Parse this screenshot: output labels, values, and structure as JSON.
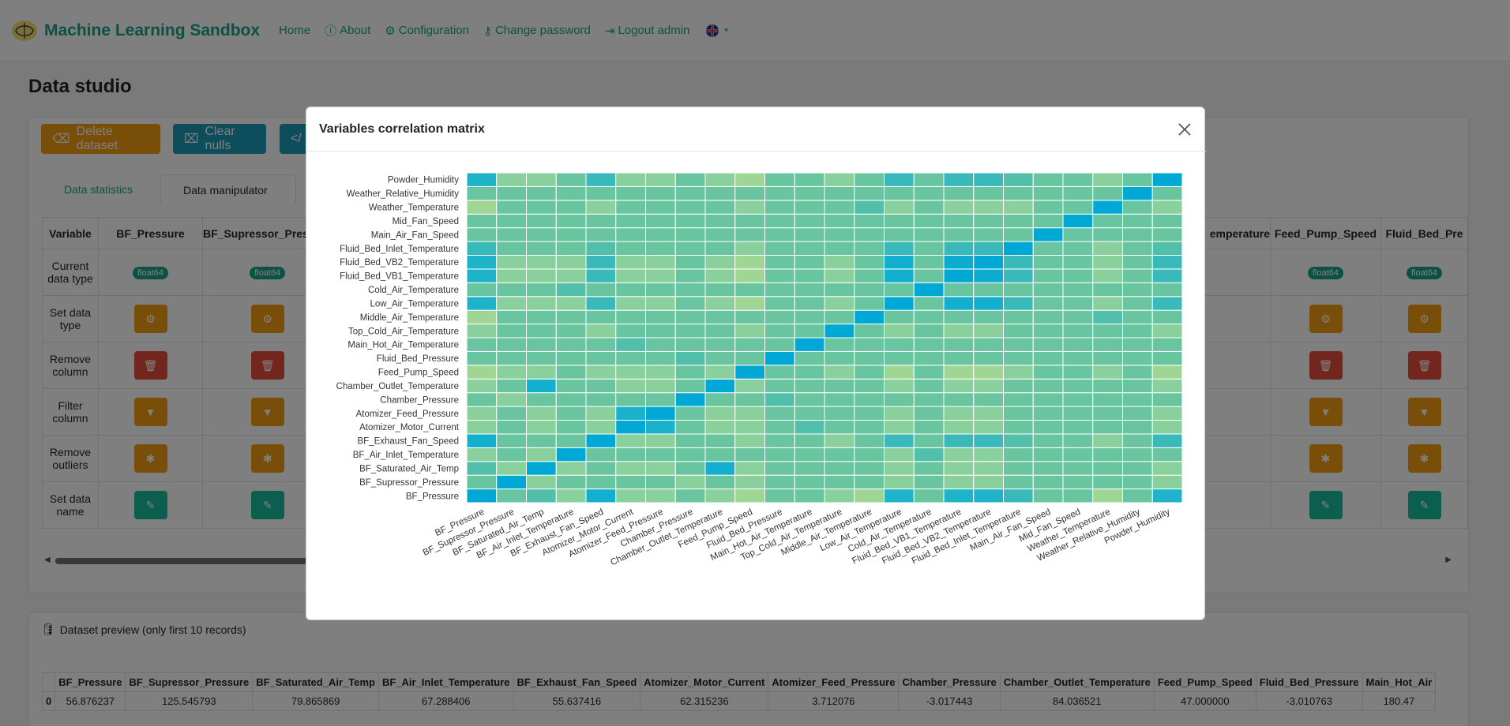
{
  "navbar": {
    "brand": "Machine Learning Sandbox",
    "links": [
      "Home",
      "About",
      "Configuration",
      "Change password",
      "Logout admin"
    ]
  },
  "page": {
    "title": "Data studio",
    "buttons": {
      "delete": "Delete dataset",
      "clear": "Clear nulls"
    },
    "tabs": [
      "Data statistics",
      "Data manipulator"
    ],
    "table": {
      "headers": [
        "Variable",
        "BF_Pressure",
        "BF_Supressor_Pressure"
      ],
      "right_headers": [
        "Feed_Pump_Speed",
        "Fluid_Bed_Pre"
      ],
      "partial_header": "emperature",
      "row_labels": [
        "Current data type",
        "Set data type",
        "Remove column",
        "Filter column",
        "Remove outliers",
        "Set data name"
      ],
      "dtype": "float64"
    }
  },
  "preview": {
    "title": "Dataset preview (only first 10 records)",
    "headers": [
      "",
      "BF_Pressure",
      "BF_Supressor_Pressure",
      "BF_Saturated_Air_Temp",
      "BF_Air_Inlet_Temperature",
      "BF_Exhaust_Fan_Speed",
      "Atomizer_Motor_Current",
      "Atomizer_Feed_Pressure",
      "Chamber_Pressure",
      "Chamber_Outlet_Temperature",
      "Feed_Pump_Speed",
      "Fluid_Bed_Pressure",
      "Main_Hot_Air"
    ],
    "row0": [
      "0",
      "56.876237",
      "125.545793",
      "79.865869",
      "67.288406",
      "55.637416",
      "62.315236",
      "3.712076",
      "-3.017443",
      "84.036521",
      "47.000000",
      "-3.010763",
      "180.47"
    ]
  },
  "modal": {
    "title": "Variables correlation matrix"
  },
  "chart_data": {
    "type": "heatmap",
    "title": "",
    "variables": [
      "BF_Pressure",
      "BF_Supressor_Pressure",
      "BF_Saturated_Air_Temp",
      "BF_Air_Inlet_Temperature",
      "BF_Exhaust_Fan_Speed",
      "Atomizer_Motor_Current",
      "Atomizer_Feed_Pressure",
      "Chamber_Pressure",
      "Chamber_Outlet_Temperature",
      "Feed_Pump_Speed",
      "Fluid_Bed_Pressure",
      "Main_Hot_Air_Temperature",
      "Top_Cold_Air_Temperature",
      "Middle_Air_Temperature",
      "Low_Air_Temperature",
      "Cold_Air_Temperature",
      "Fluid_Bed_VB1_Temperature",
      "Fluid_Bed_VB2_Temperature",
      "Fluid_Bed_Inlet_Temperature",
      "Main_Air_Fan_Speed",
      "Mid_Fan_Speed",
      "Weather_Temperature",
      "Weather_Relative_Humidity",
      "Powder_Humidity"
    ],
    "matrix": [
      [
        1.0,
        0.45,
        0.55,
        0.3,
        0.85,
        0.3,
        0.3,
        0.45,
        0.3,
        0.2,
        0.45,
        0.45,
        0.3,
        0.2,
        0.75,
        0.45,
        0.75,
        0.75,
        0.65,
        0.45,
        0.45,
        0.2,
        0.45,
        0.75
      ],
      [
        0.45,
        1.0,
        0.3,
        0.45,
        0.45,
        0.45,
        0.45,
        0.3,
        0.45,
        0.3,
        0.45,
        0.45,
        0.45,
        0.45,
        0.3,
        0.45,
        0.3,
        0.3,
        0.45,
        0.45,
        0.45,
        0.45,
        0.45,
        0.3
      ],
      [
        0.55,
        0.3,
        1.0,
        0.3,
        0.45,
        0.3,
        0.3,
        0.45,
        0.85,
        0.3,
        0.45,
        0.45,
        0.45,
        0.45,
        0.3,
        0.45,
        0.3,
        0.3,
        0.45,
        0.45,
        0.45,
        0.45,
        0.45,
        0.3
      ],
      [
        0.3,
        0.45,
        0.3,
        1.0,
        0.45,
        0.45,
        0.45,
        0.45,
        0.45,
        0.45,
        0.45,
        0.45,
        0.45,
        0.45,
        0.3,
        0.55,
        0.3,
        0.3,
        0.45,
        0.45,
        0.45,
        0.45,
        0.45,
        0.45
      ],
      [
        0.85,
        0.45,
        0.45,
        0.45,
        1.0,
        0.3,
        0.3,
        0.45,
        0.45,
        0.3,
        0.45,
        0.45,
        0.3,
        0.45,
        0.65,
        0.45,
        0.65,
        0.65,
        0.55,
        0.45,
        0.45,
        0.3,
        0.45,
        0.65
      ],
      [
        0.3,
        0.45,
        0.3,
        0.45,
        0.3,
        1.0,
        0.8,
        0.45,
        0.3,
        0.3,
        0.45,
        0.55,
        0.45,
        0.45,
        0.3,
        0.45,
        0.3,
        0.3,
        0.45,
        0.45,
        0.45,
        0.45,
        0.45,
        0.3
      ],
      [
        0.3,
        0.45,
        0.3,
        0.45,
        0.3,
        0.8,
        1.0,
        0.45,
        0.3,
        0.3,
        0.45,
        0.45,
        0.45,
        0.45,
        0.3,
        0.45,
        0.3,
        0.3,
        0.45,
        0.45,
        0.45,
        0.45,
        0.45,
        0.3
      ],
      [
        0.45,
        0.3,
        0.45,
        0.45,
        0.45,
        0.45,
        0.45,
        1.0,
        0.45,
        0.45,
        0.55,
        0.45,
        0.45,
        0.45,
        0.45,
        0.45,
        0.45,
        0.45,
        0.45,
        0.45,
        0.45,
        0.45,
        0.45,
        0.45
      ],
      [
        0.3,
        0.45,
        0.85,
        0.45,
        0.45,
        0.3,
        0.3,
        0.45,
        1.0,
        0.3,
        0.45,
        0.45,
        0.45,
        0.45,
        0.3,
        0.45,
        0.3,
        0.3,
        0.45,
        0.45,
        0.45,
        0.45,
        0.45,
        0.3
      ],
      [
        0.2,
        0.3,
        0.3,
        0.45,
        0.3,
        0.3,
        0.3,
        0.45,
        0.3,
        1.0,
        0.45,
        0.45,
        0.3,
        0.45,
        0.2,
        0.45,
        0.2,
        0.2,
        0.3,
        0.45,
        0.45,
        0.3,
        0.45,
        0.2
      ],
      [
        0.45,
        0.45,
        0.45,
        0.45,
        0.45,
        0.45,
        0.45,
        0.55,
        0.45,
        0.45,
        1.0,
        0.45,
        0.45,
        0.45,
        0.45,
        0.45,
        0.45,
        0.45,
        0.45,
        0.45,
        0.45,
        0.45,
        0.45,
        0.45
      ],
      [
        0.45,
        0.45,
        0.45,
        0.45,
        0.45,
        0.55,
        0.45,
        0.45,
        0.45,
        0.45,
        0.45,
        1.0,
        0.45,
        0.45,
        0.45,
        0.45,
        0.45,
        0.45,
        0.45,
        0.45,
        0.45,
        0.45,
        0.45,
        0.45
      ],
      [
        0.3,
        0.45,
        0.45,
        0.45,
        0.3,
        0.45,
        0.45,
        0.45,
        0.45,
        0.3,
        0.45,
        0.45,
        1.0,
        0.45,
        0.3,
        0.45,
        0.3,
        0.3,
        0.45,
        0.45,
        0.45,
        0.45,
        0.45,
        0.3
      ],
      [
        0.2,
        0.45,
        0.45,
        0.45,
        0.45,
        0.45,
        0.45,
        0.45,
        0.45,
        0.45,
        0.45,
        0.45,
        0.45,
        1.0,
        0.45,
        0.45,
        0.45,
        0.45,
        0.45,
        0.45,
        0.45,
        0.55,
        0.45,
        0.45
      ],
      [
        0.75,
        0.3,
        0.3,
        0.3,
        0.65,
        0.3,
        0.3,
        0.45,
        0.3,
        0.2,
        0.45,
        0.45,
        0.3,
        0.45,
        1.0,
        0.45,
        0.85,
        0.85,
        0.65,
        0.45,
        0.45,
        0.3,
        0.45,
        0.65
      ],
      [
        0.45,
        0.45,
        0.45,
        0.55,
        0.45,
        0.45,
        0.45,
        0.45,
        0.45,
        0.45,
        0.45,
        0.45,
        0.45,
        0.45,
        0.45,
        1.0,
        0.45,
        0.45,
        0.45,
        0.45,
        0.45,
        0.45,
        0.45,
        0.45
      ],
      [
        0.75,
        0.3,
        0.3,
        0.3,
        0.65,
        0.3,
        0.3,
        0.45,
        0.3,
        0.2,
        0.45,
        0.45,
        0.3,
        0.45,
        0.85,
        0.45,
        1.0,
        0.9,
        0.65,
        0.45,
        0.45,
        0.3,
        0.45,
        0.65
      ],
      [
        0.75,
        0.3,
        0.3,
        0.3,
        0.65,
        0.3,
        0.3,
        0.45,
        0.3,
        0.2,
        0.45,
        0.45,
        0.3,
        0.45,
        0.85,
        0.45,
        0.9,
        1.0,
        0.65,
        0.45,
        0.45,
        0.3,
        0.45,
        0.65
      ],
      [
        0.65,
        0.45,
        0.45,
        0.45,
        0.55,
        0.45,
        0.45,
        0.45,
        0.45,
        0.3,
        0.45,
        0.45,
        0.45,
        0.45,
        0.65,
        0.45,
        0.65,
        0.65,
        1.0,
        0.45,
        0.45,
        0.3,
        0.45,
        0.55
      ],
      [
        0.45,
        0.45,
        0.45,
        0.45,
        0.45,
        0.45,
        0.45,
        0.45,
        0.45,
        0.45,
        0.45,
        0.45,
        0.45,
        0.45,
        0.45,
        0.45,
        0.45,
        0.45,
        0.45,
        1.0,
        0.45,
        0.45,
        0.45,
        0.45
      ],
      [
        0.45,
        0.45,
        0.45,
        0.45,
        0.45,
        0.45,
        0.45,
        0.45,
        0.45,
        0.45,
        0.45,
        0.45,
        0.45,
        0.45,
        0.45,
        0.45,
        0.45,
        0.45,
        0.45,
        0.45,
        1.0,
        0.45,
        0.45,
        0.45
      ],
      [
        0.2,
        0.45,
        0.45,
        0.45,
        0.3,
        0.45,
        0.45,
        0.45,
        0.45,
        0.3,
        0.45,
        0.45,
        0.45,
        0.55,
        0.3,
        0.45,
        0.3,
        0.3,
        0.3,
        0.45,
        0.45,
        1.0,
        0.45,
        0.3
      ],
      [
        0.45,
        0.45,
        0.45,
        0.45,
        0.45,
        0.45,
        0.45,
        0.45,
        0.45,
        0.45,
        0.45,
        0.45,
        0.45,
        0.45,
        0.45,
        0.45,
        0.45,
        0.45,
        0.45,
        0.45,
        0.45,
        0.45,
        1.0,
        0.45
      ],
      [
        0.75,
        0.3,
        0.3,
        0.45,
        0.65,
        0.3,
        0.3,
        0.45,
        0.3,
        0.2,
        0.45,
        0.45,
        0.3,
        0.45,
        0.65,
        0.45,
        0.65,
        0.65,
        0.55,
        0.45,
        0.45,
        0.3,
        0.45,
        1.0
      ]
    ],
    "colorscale": [
      "#d4e17e",
      "#93d39a",
      "#5fc2a2",
      "#1fb3ca",
      "#00a8d6"
    ],
    "grid": true
  }
}
